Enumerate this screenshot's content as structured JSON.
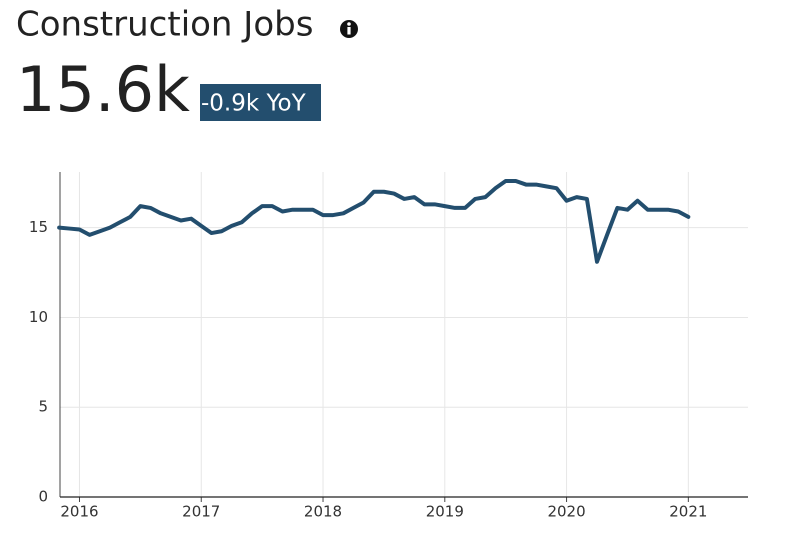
{
  "chart_data": {
    "type": "line",
    "title": "Construction Jobs",
    "headline": "15.6k",
    "change": "-0.9k YoY",
    "x": [
      2015.833,
      2015.917,
      2016,
      2016.083,
      2016.167,
      2016.25,
      2016.333,
      2016.417,
      2016.5,
      2016.583,
      2016.667,
      2016.75,
      2016.833,
      2016.917,
      2017,
      2017.083,
      2017.167,
      2017.25,
      2017.333,
      2017.417,
      2017.5,
      2017.583,
      2017.667,
      2017.75,
      2017.833,
      2017.917,
      2018,
      2018.083,
      2018.167,
      2018.25,
      2018.333,
      2018.417,
      2018.5,
      2018.583,
      2018.667,
      2018.75,
      2018.833,
      2018.917,
      2019,
      2019.083,
      2019.167,
      2019.25,
      2019.333,
      2019.417,
      2019.5,
      2019.583,
      2019.667,
      2019.75,
      2019.833,
      2019.917,
      2020,
      2020.083,
      2020.167,
      2020.25,
      2020.333,
      2020.417,
      2020.5,
      2020.583,
      2020.667,
      2020.75,
      2020.833,
      2020.917,
      2021
    ],
    "values": [
      15.0,
      14.95,
      14.9,
      14.6,
      14.8,
      15.0,
      15.3,
      15.6,
      16.2,
      16.1,
      15.8,
      15.6,
      15.4,
      15.5,
      15.1,
      14.7,
      14.8,
      15.1,
      15.3,
      15.8,
      16.2,
      16.2,
      15.9,
      16.0,
      16.0,
      16.0,
      15.7,
      15.7,
      15.8,
      16.1,
      16.4,
      17.0,
      17.0,
      16.9,
      16.6,
      16.7,
      16.3,
      16.3,
      16.2,
      16.1,
      16.1,
      16.6,
      16.7,
      17.2,
      17.6,
      17.6,
      17.4,
      17.4,
      17.3,
      17.2,
      16.5,
      16.7,
      16.6,
      13.1,
      14.6,
      16.1,
      16.0,
      16.5,
      16.0,
      16.0,
      16.0,
      15.9,
      15.6
    ],
    "color": "#234e6e",
    "xlim": [
      2015.84,
      2021.49
    ],
    "xticks": [
      2016,
      2017,
      2018,
      2019,
      2020,
      2021
    ],
    "ylim": [
      0,
      18.1
    ],
    "yticks": [
      0,
      5,
      10,
      15
    ],
    "grid": true
  }
}
